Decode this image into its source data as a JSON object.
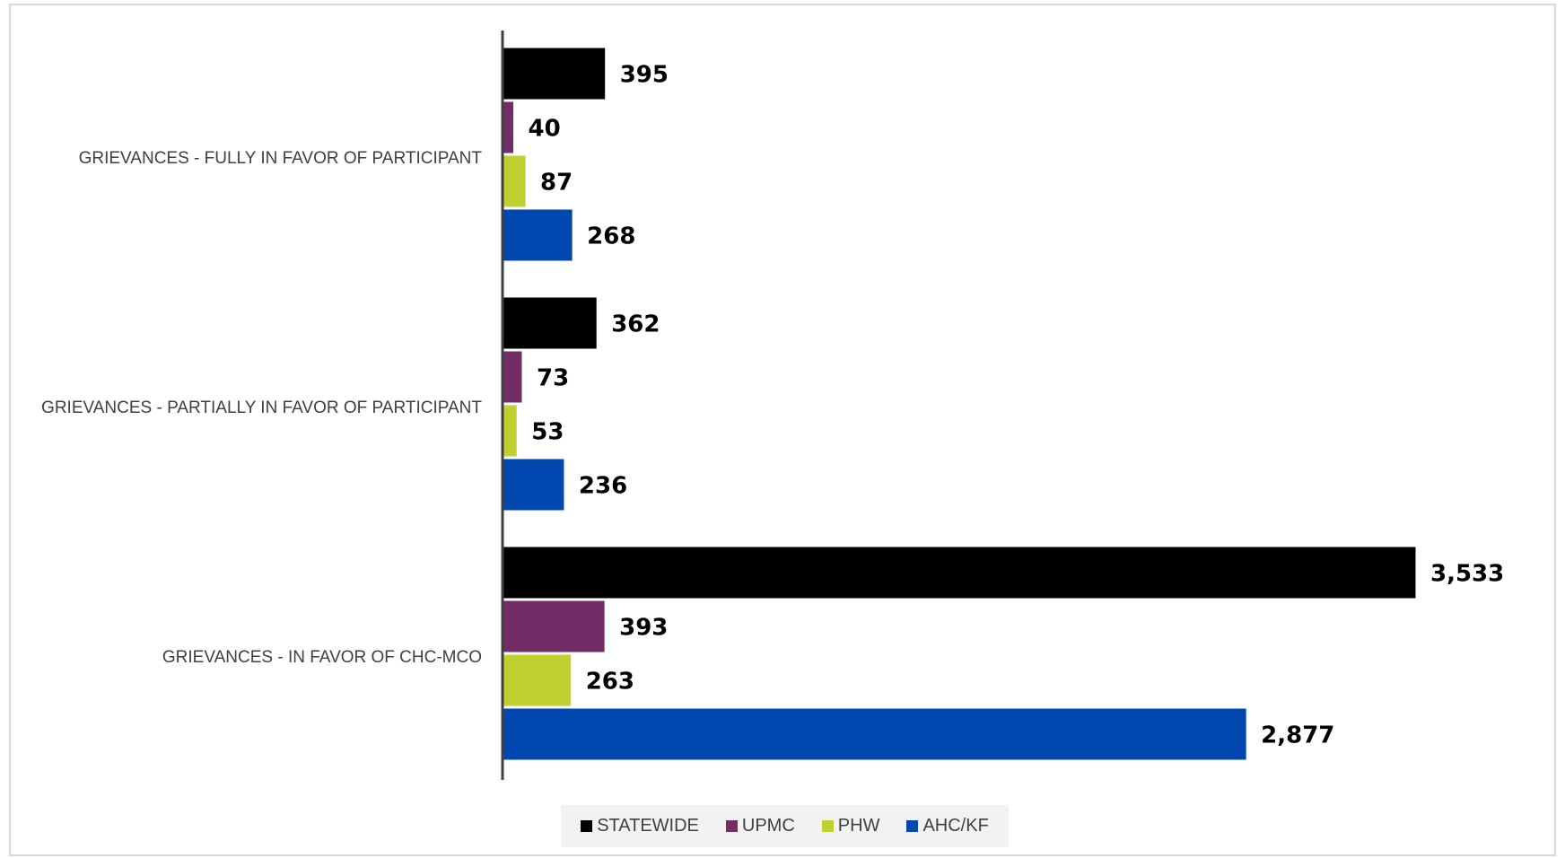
{
  "chart_data": {
    "type": "bar",
    "orientation": "horizontal",
    "categories": [
      "GRIEVANCES - FULLY IN FAVOR OF PARTICIPANT",
      "GRIEVANCES - PARTIALLY IN FAVOR OF PARTICIPANT",
      "GRIEVANCES - IN FAVOR OF CHC-MCO"
    ],
    "series": [
      {
        "name": "STATEWIDE",
        "color": "#000000",
        "values": [
          395,
          362,
          3533
        ],
        "labels": [
          "395",
          "362",
          "3,533"
        ]
      },
      {
        "name": "UPMC",
        "color": "#722d66",
        "values": [
          40,
          73,
          393
        ],
        "labels": [
          "40",
          "73",
          "393"
        ]
      },
      {
        "name": "PHW",
        "color": "#bfd030",
        "values": [
          87,
          53,
          263
        ],
        "labels": [
          "87",
          "53",
          "263"
        ]
      },
      {
        "name": "AHC/KF",
        "color": "#0047b0",
        "values": [
          268,
          236,
          2877
        ],
        "labels": [
          "268",
          "236",
          "2,877"
        ]
      }
    ],
    "xlim": [
      0,
      3533
    ],
    "grid": false,
    "legend_position": "bottom"
  }
}
